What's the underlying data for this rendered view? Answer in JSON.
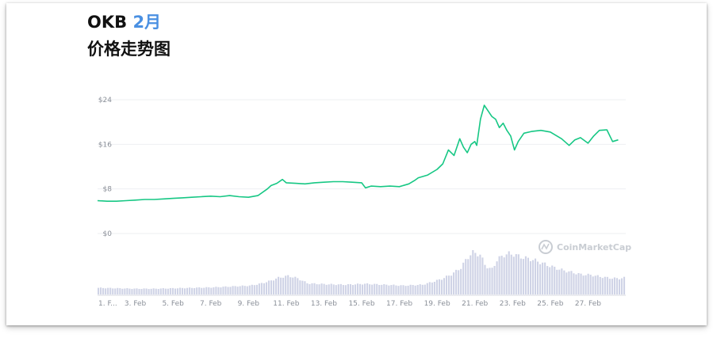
{
  "header": {
    "title_prefix": "OKB ",
    "title_month": "2月",
    "subtitle": "价格走势图"
  },
  "watermark": {
    "text": "CoinMarketCap",
    "icon": "coinmarketcap-logo-icon"
  },
  "colors": {
    "line": "#16c784",
    "volume": "#cfd3e6",
    "grid": "#eeeff2",
    "month_accent": "#4a90e2"
  },
  "chart_data": {
    "type": "line",
    "title": "",
    "xlabel": "",
    "ylabel": "",
    "ylim": [
      0,
      24
    ],
    "yticks": [
      "$0",
      "$8",
      "$16",
      "$24"
    ],
    "ytick_values": [
      0,
      8,
      16,
      24
    ],
    "xlim": [
      1,
      29
    ],
    "xticks": [
      "1. F...",
      "3. Feb",
      "5. Feb",
      "7. Feb",
      "9. Feb",
      "11. Feb",
      "13. Feb",
      "15. Feb",
      "17. Feb",
      "19. Feb",
      "21. Feb",
      "23. Feb",
      "25. Feb",
      "27. Feb"
    ],
    "xtick_values": [
      1,
      3,
      5,
      7,
      9,
      11,
      13,
      15,
      17,
      19,
      21,
      23,
      25,
      27
    ],
    "grid": true,
    "legend": "none",
    "series": [
      {
        "x": [
          1.0,
          1.5,
          2.0,
          2.5,
          3.0,
          3.5,
          4.0,
          4.5,
          5.0,
          5.5,
          6.0,
          6.5,
          7.0,
          7.5,
          8.0,
          8.5,
          9.0,
          9.5,
          10.0,
          10.2,
          10.5,
          10.8,
          11.0,
          11.5,
          12.0,
          12.5,
          13.0,
          13.5,
          14.0,
          14.5,
          15.0,
          15.2,
          15.5,
          16.0,
          16.5,
          17.0,
          17.5,
          17.8,
          18.0,
          18.5,
          19.0,
          19.3,
          19.6,
          19.9,
          20.2,
          20.4,
          20.6,
          20.8,
          21.0,
          21.1,
          21.3,
          21.5,
          21.7,
          21.9,
          22.1,
          22.3,
          22.5,
          22.7,
          22.9,
          23.1,
          23.3,
          23.6,
          24.0,
          24.5,
          25.0,
          25.3,
          25.6,
          26.0,
          26.3,
          26.6,
          27.0,
          27.3,
          27.6,
          28.0,
          28.3,
          28.6
        ],
        "y": [
          5.9,
          5.8,
          5.8,
          5.9,
          6.0,
          6.1,
          6.1,
          6.2,
          6.3,
          6.4,
          6.5,
          6.6,
          6.7,
          6.6,
          6.8,
          6.6,
          6.5,
          6.8,
          8.0,
          8.6,
          9.0,
          9.7,
          9.1,
          9.0,
          8.9,
          9.1,
          9.2,
          9.3,
          9.3,
          9.2,
          9.1,
          8.2,
          8.5,
          8.4,
          8.5,
          8.4,
          8.9,
          9.5,
          10.0,
          10.5,
          11.5,
          12.5,
          15.0,
          14.0,
          17.0,
          15.5,
          14.5,
          16.0,
          16.5,
          15.8,
          20.5,
          23.0,
          22.0,
          21.0,
          20.5,
          19.0,
          19.8,
          18.5,
          17.5,
          15.0,
          16.5,
          18.0,
          18.3,
          18.5,
          18.2,
          17.6,
          17.0,
          15.8,
          16.8,
          17.2,
          16.2,
          17.5,
          18.5,
          18.6,
          16.5,
          16.8
        ]
      }
    ],
    "volume": {
      "x": [
        1.0,
        2.0,
        3.0,
        4.0,
        5.0,
        6.0,
        7.0,
        8.0,
        9.0,
        9.5,
        10.0,
        10.5,
        11.0,
        11.5,
        12.0,
        13.0,
        14.0,
        15.0,
        16.0,
        17.0,
        18.0,
        18.5,
        19.0,
        19.5,
        20.0,
        20.3,
        20.6,
        21.0,
        21.3,
        21.6,
        21.9,
        22.2,
        22.5,
        22.8,
        23.1,
        23.4,
        23.8,
        24.3,
        24.8,
        25.3,
        25.8,
        26.3,
        26.8,
        27.3,
        27.8,
        28.3,
        28.6
      ],
      "y": [
        0.15,
        0.14,
        0.13,
        0.13,
        0.14,
        0.15,
        0.16,
        0.18,
        0.2,
        0.24,
        0.3,
        0.38,
        0.42,
        0.36,
        0.25,
        0.23,
        0.22,
        0.24,
        0.22,
        0.2,
        0.22,
        0.28,
        0.35,
        0.45,
        0.6,
        0.8,
        0.95,
        0.9,
        0.65,
        0.55,
        0.78,
        0.88,
        0.92,
        0.9,
        0.85,
        0.82,
        0.78,
        0.7,
        0.62,
        0.55,
        0.5,
        0.45,
        0.44,
        0.4,
        0.37,
        0.36,
        0.38
      ]
    }
  }
}
